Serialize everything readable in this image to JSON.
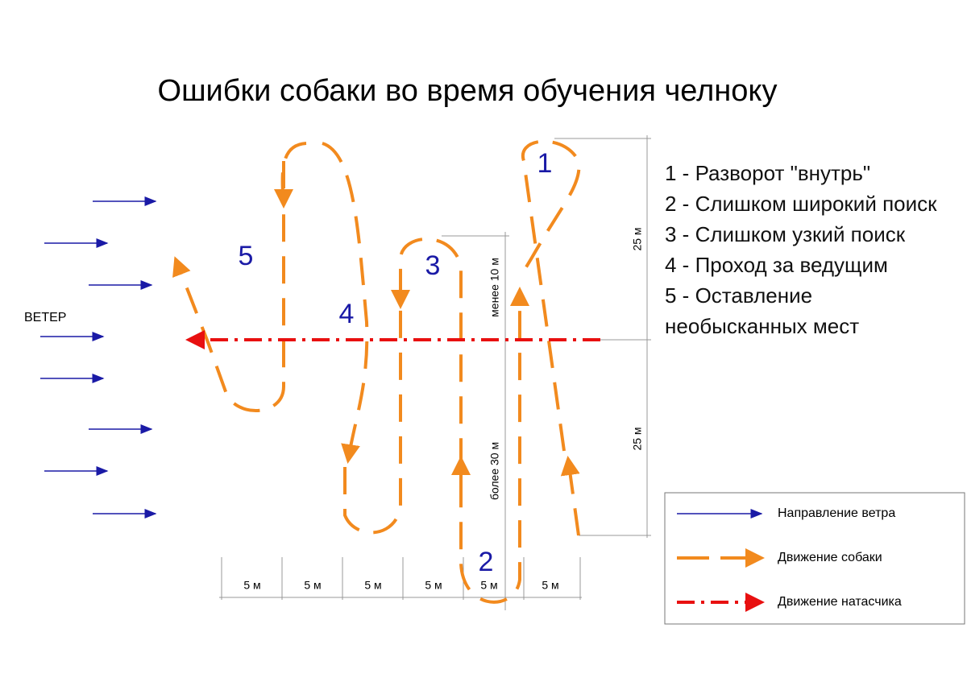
{
  "title": "Ошибки собаки во время обучения челноку",
  "wind_label": "ВЕТЕР",
  "error_numbers": [
    "1",
    "2",
    "3",
    "4",
    "5"
  ],
  "errors": [
    "1 - Разворот \"внутрь\"",
    "2 - Слишком широкий поиск",
    "3 - Слишком узкий поиск",
    "4 - Проход за ведущим",
    "5 - Оставление необысканных мест"
  ],
  "dimensions": {
    "widths": [
      "5 м",
      "5 м",
      "5 м",
      "5 м",
      "5 м",
      "5 м"
    ],
    "upper": "25 м",
    "lower": "25 м",
    "less": "менее 10 м",
    "more": "более 30 м"
  },
  "legend": [
    "Направление ветра",
    "Движение собаки",
    "Движение натасчика"
  ]
}
